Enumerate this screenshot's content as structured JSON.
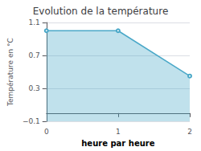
{
  "chart_data": {
    "type": "line",
    "title": "Evolution de la température",
    "xlabel": "heure par heure",
    "ylabel": "Température en °C",
    "x": [
      0,
      1,
      2
    ],
    "values": [
      1.0,
      1.0,
      0.45
    ],
    "color": "#4aa8c8",
    "xlim": [
      0,
      2
    ],
    "ylim": [
      -0.1,
      1.1
    ],
    "xticks": [
      0,
      1,
      2
    ],
    "yticks": [
      {
        "value": -0.1,
        "label": "−0.1"
      },
      0.3,
      0.7,
      1.1
    ],
    "grid": true
  }
}
